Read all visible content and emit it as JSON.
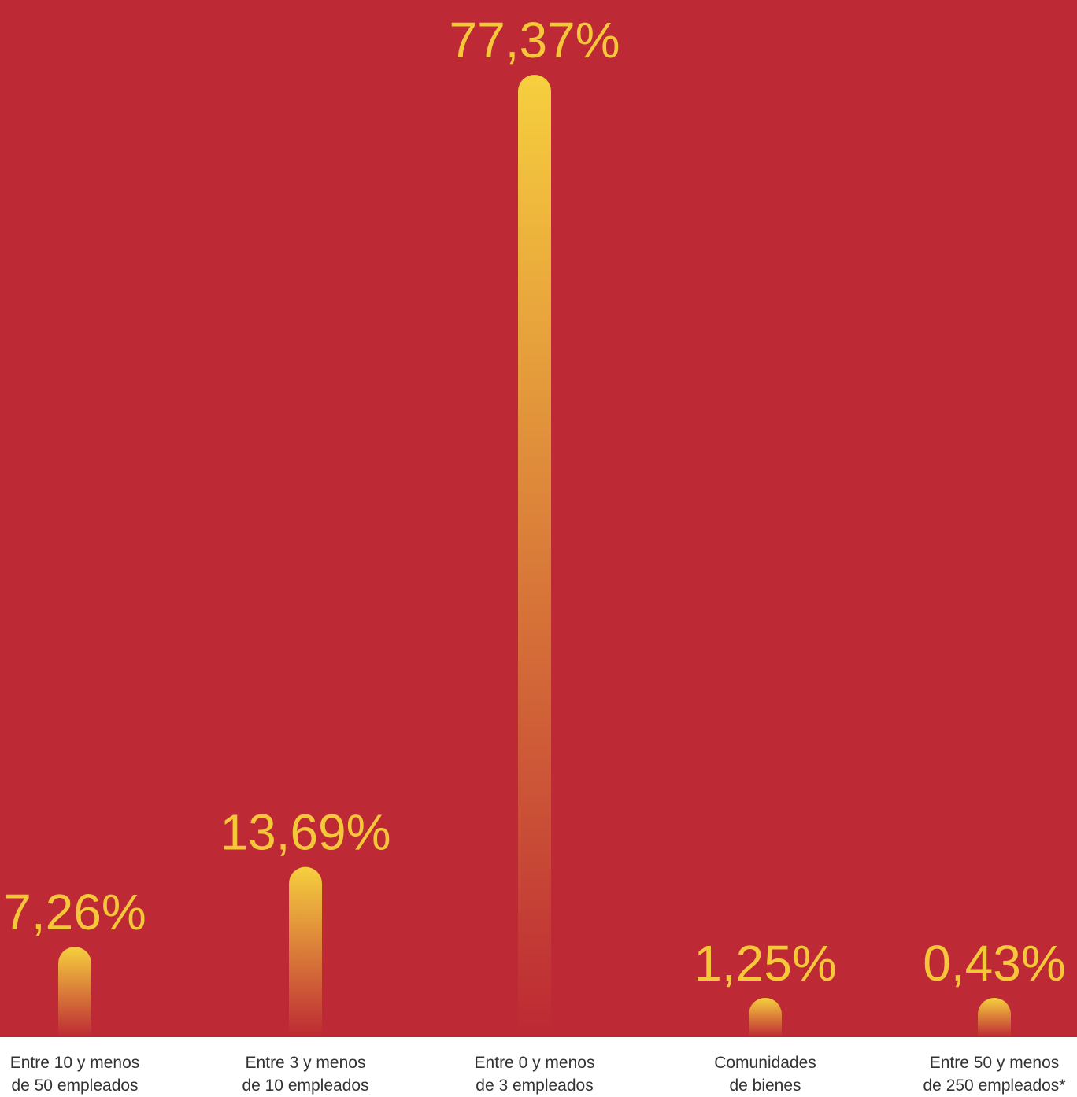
{
  "chart_data": {
    "type": "bar",
    "categories": [
      [
        "Entre 10 y menos",
        "de 50 empleados"
      ],
      [
        "Entre 3 y menos",
        "de 10 empleados"
      ],
      [
        "Entre 0 y menos",
        "de 3 empleados"
      ],
      [
        "Comunidades",
        "de bienes"
      ],
      [
        "Entre 50 y menos",
        "de 250 empleados*"
      ]
    ],
    "values": [
      7.26,
      13.69,
      77.37,
      1.25,
      0.43
    ],
    "value_labels": [
      "7,26%",
      "13,69%",
      "77,37%",
      "1,25%",
      "0,43%"
    ],
    "unit": "%",
    "ylim": [
      0,
      77.37
    ],
    "grid": false,
    "legend": "none"
  },
  "colors": {
    "plot_background": "#BD2934",
    "bar_top": "#F6CF3E",
    "bar_bottom": "#BD2934",
    "value_label": "#F5C83A",
    "category_label": "#333333",
    "page_background": "#FFFFFF"
  }
}
